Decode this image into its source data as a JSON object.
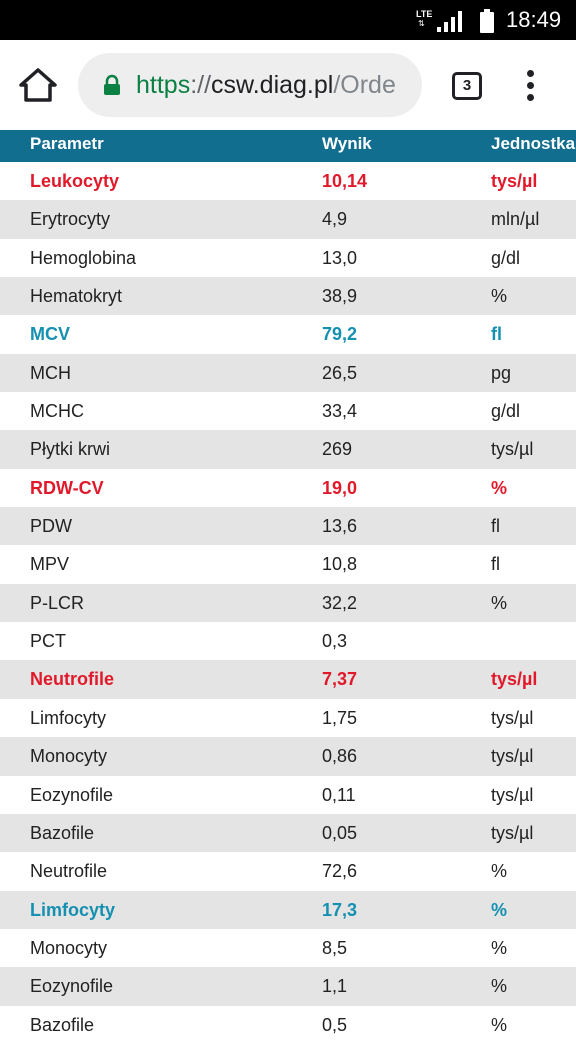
{
  "status_bar": {
    "network": "LTE",
    "time": "18:49"
  },
  "browser": {
    "url_scheme": "https",
    "url_sep": "://",
    "url_host": "csw.diag.pl",
    "url_path": "/Orde",
    "tab_count": "3"
  },
  "table": {
    "headers": [
      "Parametr",
      "Wynik",
      "Jednostka"
    ],
    "rows": [
      {
        "param": "Leukocyty",
        "value": "10,14",
        "unit": "tys/µl",
        "flag": "red"
      },
      {
        "param": "Erytrocyty",
        "value": "4,9",
        "unit": "mln/µl",
        "flag": ""
      },
      {
        "param": "Hemoglobina",
        "value": "13,0",
        "unit": "g/dl",
        "flag": ""
      },
      {
        "param": "Hematokryt",
        "value": "38,9",
        "unit": "%",
        "flag": ""
      },
      {
        "param": "MCV",
        "value": "79,2",
        "unit": "fl",
        "flag": "blue"
      },
      {
        "param": "MCH",
        "value": "26,5",
        "unit": "pg",
        "flag": ""
      },
      {
        "param": "MCHC",
        "value": "33,4",
        "unit": "g/dl",
        "flag": ""
      },
      {
        "param": "Płytki krwi",
        "value": "269",
        "unit": "tys/µl",
        "flag": ""
      },
      {
        "param": "RDW-CV",
        "value": "19,0",
        "unit": "%",
        "flag": "red"
      },
      {
        "param": "PDW",
        "value": "13,6",
        "unit": "fl",
        "flag": ""
      },
      {
        "param": "MPV",
        "value": "10,8",
        "unit": "fl",
        "flag": ""
      },
      {
        "param": "P-LCR",
        "value": "32,2",
        "unit": "%",
        "flag": ""
      },
      {
        "param": "PCT",
        "value": "0,3",
        "unit": "",
        "flag": ""
      },
      {
        "param": "Neutrofile",
        "value": "7,37",
        "unit": "tys/µl",
        "flag": "red"
      },
      {
        "param": "Limfocyty",
        "value": "1,75",
        "unit": "tys/µl",
        "flag": ""
      },
      {
        "param": "Monocyty",
        "value": "0,86",
        "unit": "tys/µl",
        "flag": ""
      },
      {
        "param": "Eozynofile",
        "value": "0,11",
        "unit": "tys/µl",
        "flag": ""
      },
      {
        "param": "Bazofile",
        "value": "0,05",
        "unit": "tys/µl",
        "flag": ""
      },
      {
        "param": "Neutrofile",
        "value": "72,6",
        "unit": "%",
        "flag": ""
      },
      {
        "param": "Limfocyty",
        "value": "17,3",
        "unit": "%",
        "flag": "blue"
      },
      {
        "param": "Monocyty",
        "value": "8,5",
        "unit": "%",
        "flag": ""
      },
      {
        "param": "Eozynofile",
        "value": "1,1",
        "unit": "%",
        "flag": ""
      },
      {
        "param": "Bazofile",
        "value": "0,5",
        "unit": "%",
        "flag": ""
      }
    ]
  },
  "colors": {
    "header_bg": "#126e8f",
    "flag_red": "#e01a2b",
    "flag_blue": "#1590b0",
    "row_alt": "#e4e4e4",
    "url_scheme": "#0b8043"
  }
}
